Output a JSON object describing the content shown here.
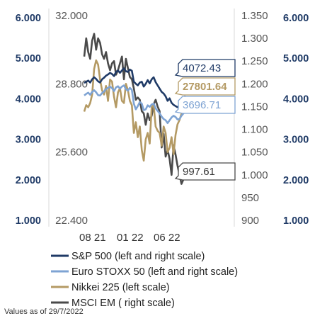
{
  "chart_data": {
    "type": "line",
    "x_tick_labels": [
      "08 21",
      "01 22",
      "06 22"
    ],
    "axes": {
      "outer_left": {
        "ticks": [
          "6.000",
          "5.000",
          "4.000",
          "3.000",
          "2.000",
          "1.000"
        ],
        "ylim": [
          1000,
          6000
        ]
      },
      "inner_left": {
        "ticks": [
          "32.000",
          "28.800",
          "25.600",
          "22.400"
        ],
        "ylim": [
          22400,
          32000
        ]
      },
      "inner_right": {
        "ticks": [
          "1.350",
          "1.300",
          "1.250",
          "1.200",
          "1.150",
          "1.100",
          "1.050",
          "1.000",
          "950",
          "900"
        ],
        "ylim": [
          900,
          1350
        ]
      },
      "outer_right": {
        "ticks": [
          "6.000",
          "5.000",
          "4.000",
          "3.000",
          "2.000",
          "1.000"
        ],
        "ylim": [
          1000,
          6000
        ]
      }
    },
    "x": [
      0,
      1,
      2,
      3,
      4,
      5,
      6,
      7,
      8,
      9,
      10,
      11,
      12,
      13,
      14,
      15,
      16,
      17,
      18,
      19,
      20,
      21,
      22,
      23,
      24,
      25,
      26,
      27,
      28,
      29,
      30,
      31,
      32,
      33,
      34,
      35,
      36,
      37,
      38,
      39,
      40,
      41,
      42,
      43,
      44,
      45,
      46,
      47,
      48,
      49,
      50,
      51
    ],
    "series": [
      {
        "name": "S&P 500 (left and right scale)",
        "axis": "outer_left",
        "color": "#1f3a66",
        "last_value_label": "4072.43",
        "values": [
          4390,
          4420,
          4450,
          4400,
          4480,
          4530,
          4490,
          4430,
          4400,
          4480,
          4520,
          4570,
          4600,
          4640,
          4610,
          4560,
          4660,
          4700,
          4640,
          4700,
          4750,
          4680,
          4660,
          4720,
          4690,
          4420,
          4370,
          4330,
          4400,
          4420,
          4300,
          4370,
          4460,
          4380,
          4480,
          4530,
          4410,
          4330,
          4250,
          4170,
          4130,
          4060,
          3950,
          4010,
          3900,
          3850,
          3820,
          3790,
          3830,
          3910,
          3960,
          4072
        ]
      },
      {
        "name": "Euro STOXX 50 (left and right scale)",
        "axis": "outer_left",
        "color": "#7ea3d3",
        "last_value_label": "3696.71",
        "values": [
          4080,
          4120,
          4150,
          4100,
          4170,
          4210,
          4160,
          4090,
          4080,
          4140,
          4180,
          4240,
          4270,
          4300,
          4260,
          4190,
          4280,
          4310,
          4250,
          4300,
          4330,
          4240,
          4200,
          4270,
          4220,
          3880,
          3740,
          3820,
          3920,
          3880,
          3720,
          3740,
          3840,
          3800,
          3860,
          3880,
          3760,
          3700,
          3640,
          3560,
          3500,
          3470,
          3400,
          3470,
          3540,
          3580,
          3550,
          3490,
          3500,
          3580,
          3640,
          3697
        ]
      },
      {
        "name": "Nikkei 225 (left scale)",
        "axis": "inner_left",
        "color": "#b49a64",
        "last_value_label": "27801.64",
        "values": [
          27500,
          27800,
          27700,
          27900,
          28300,
          29500,
          29900,
          29700,
          29000,
          28500,
          28300,
          28700,
          28000,
          29000,
          28900,
          28200,
          27700,
          28400,
          28600,
          28000,
          27900,
          28800,
          28500,
          28000,
          27800,
          26500,
          27000,
          26300,
          26800,
          25700,
          25200,
          26200,
          26500,
          26000,
          27700,
          27800,
          26800,
          26600,
          26500,
          25900,
          26800,
          26500,
          25600,
          25800,
          26300,
          25500,
          26400,
          26900,
          27100,
          27400,
          27600,
          27802
        ]
      },
      {
        "name": "MSCI EM ( right scale)",
        "axis": "inner_right",
        "color": "#4a4a4a",
        "last_value_label": "997.61",
        "values": [
          1260,
          1300,
          1270,
          1255,
          1295,
          1310,
          1275,
          1300,
          1290,
          1265,
          1255,
          1270,
          1245,
          1230,
          1245,
          1250,
          1220,
          1230,
          1245,
          1260,
          1210,
          1255,
          1235,
          1215,
          1210,
          1190,
          1165,
          1170,
          1165,
          1140,
          1135,
          1110,
          1135,
          1120,
          1130,
          1155,
          1165,
          1150,
          1140,
          1060,
          1090,
          1040,
          1055,
          1035,
          1000,
          1065,
          1045,
          1020,
          1000,
          980,
          990,
          998
        ]
      }
    ]
  },
  "note": "Values as of 29/7/2022"
}
